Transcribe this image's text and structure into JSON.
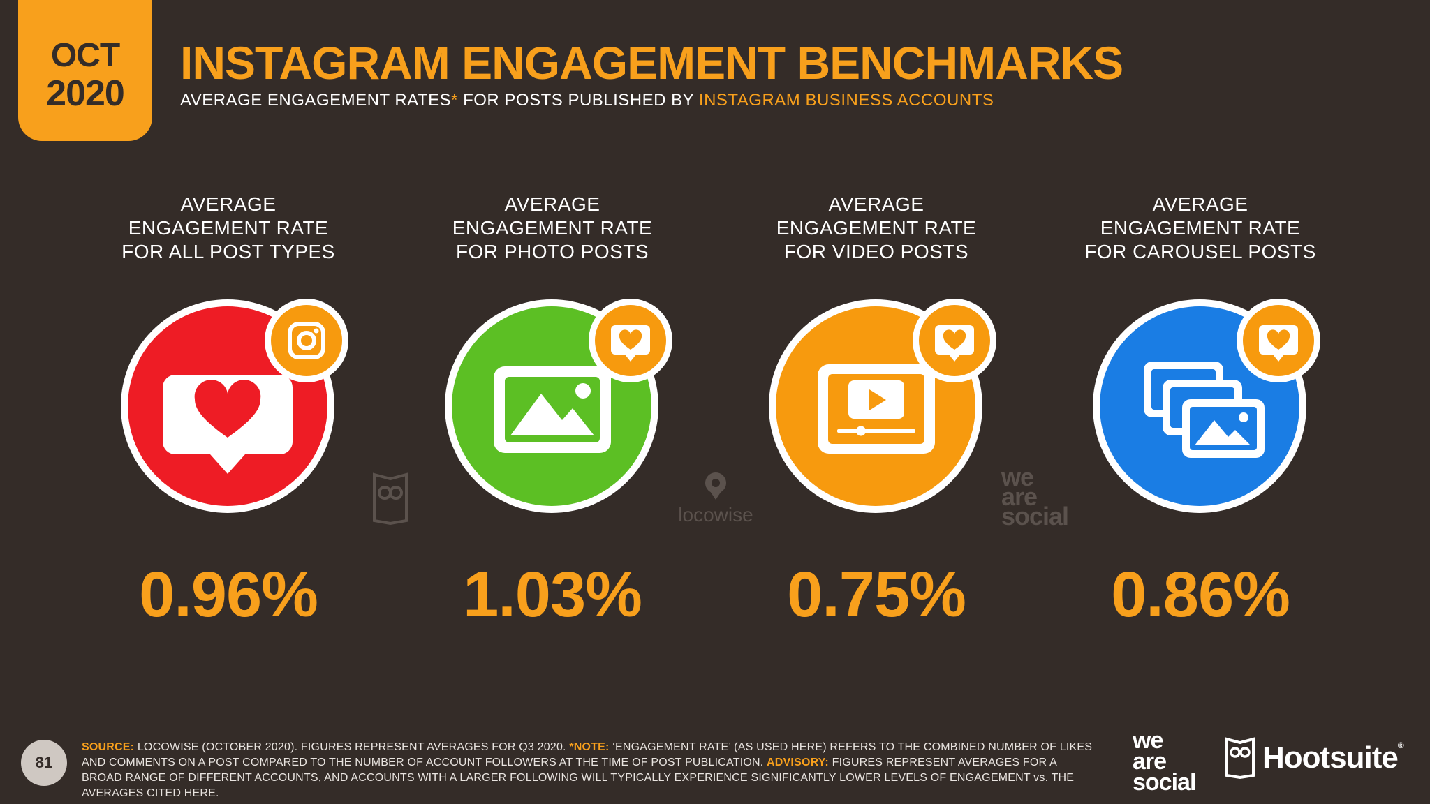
{
  "date_badge": {
    "month": "OCT",
    "year": "2020"
  },
  "title": "INSTAGRAM ENGAGEMENT BENCHMARKS",
  "subtitle": {
    "part1": "AVERAGE ENGAGEMENT RATES",
    "star": "*",
    "part2": " FOR POSTS PUBLISHED BY ",
    "highlight": "INSTAGRAM BUSINESS ACCOUNTS"
  },
  "metrics": [
    {
      "label": [
        "AVERAGE",
        "ENGAGEMENT RATE",
        "FOR ALL POST TYPES"
      ],
      "value": "0.96%",
      "circle_color": "#ee1c25",
      "icon": "heart-chat-icon",
      "badge_icon": "instagram-icon"
    },
    {
      "label": [
        "AVERAGE",
        "ENGAGEMENT RATE",
        "FOR PHOTO POSTS"
      ],
      "value": "1.03%",
      "circle_color": "#5cbf24",
      "icon": "photo-icon",
      "badge_icon": "heart-chat-icon"
    },
    {
      "label": [
        "AVERAGE",
        "ENGAGEMENT RATE",
        "FOR VIDEO POSTS"
      ],
      "value": "0.75%",
      "circle_color": "#f79a0e",
      "icon": "video-player-icon",
      "badge_icon": "heart-chat-icon"
    },
    {
      "label": [
        "AVERAGE",
        "ENGAGEMENT RATE",
        "FOR CAROUSEL POSTS"
      ],
      "value": "0.86%",
      "circle_color": "#1a7de4",
      "icon": "carousel-icon",
      "badge_icon": "heart-chat-icon"
    }
  ],
  "watermarks": {
    "locowise": "locowise",
    "was_1": "we",
    "was_2": "are",
    "was_3": "social"
  },
  "footer": {
    "page_number": "81",
    "source_key": "SOURCE:",
    "source_text": " LOCOWISE (OCTOBER 2020). FIGURES REPRESENT AVERAGES FOR Q3 2020. ",
    "note_key": "*NOTE:",
    "note_text": " ‘ENGAGEMENT RATE’ (AS USED HERE) REFERS TO THE COMBINED NUMBER OF LIKES AND COMMENTS ON A POST COMPARED TO THE NUMBER OF ACCOUNT FOLLOWERS AT THE TIME OF POST PUBLICATION. ",
    "advisory_key": "ADVISORY:",
    "advisory_text": " FIGURES REPRESENT AVERAGES FOR A BROAD RANGE OF DIFFERENT ACCOUNTS, AND ACCOUNTS WITH A LARGER FOLLOWING WILL TYPICALLY EXPERIENCE SIGNIFICANTLY LOWER LEVELS OF ENGAGEMENT vs. THE AVERAGES CITED HERE.",
    "logo_we": "we",
    "logo_are": "are",
    "logo_social": "social",
    "logo_hootsuite": "Hootsuite",
    "logo_tm": "®"
  },
  "colors": {
    "accent": "#f8a01c",
    "background": "#342c28"
  }
}
